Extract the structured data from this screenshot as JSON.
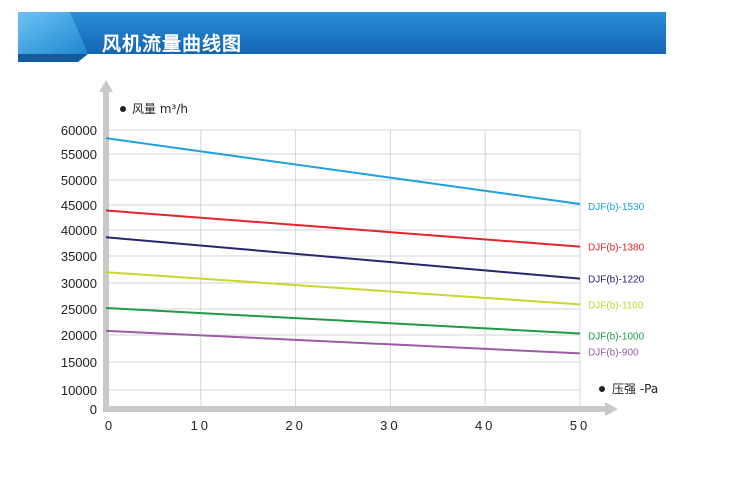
{
  "header": {
    "title": "风机流量曲线图"
  },
  "chart_data": {
    "type": "line",
    "ylabel": "风量 m³/h",
    "xlabel": "压强 -Pa",
    "x_ticks": [
      "0",
      "10",
      "20",
      "30",
      "40",
      "50"
    ],
    "y_ticks": [
      "0",
      "10000",
      "15000",
      "20000",
      "25000",
      "30000",
      "35000",
      "40000",
      "45000",
      "50000",
      "55000",
      "60000"
    ],
    "xlim": [
      0,
      50
    ],
    "ylim": [
      0,
      60000
    ],
    "x": [
      0,
      50
    ],
    "grid": true,
    "series": [
      {
        "name": "DJF(b)-1530",
        "color": "#1ea0dc",
        "values": [
          58300,
          45200
        ]
      },
      {
        "name": "DJF(b)-1380",
        "color": "#e3242b",
        "values": [
          43900,
          36800
        ]
      },
      {
        "name": "DJF(b)-1220",
        "color": "#27256f",
        "values": [
          38600,
          30800
        ]
      },
      {
        "name": "DJF(b)-1100",
        "color": "#c6d82a",
        "values": [
          32000,
          25900
        ]
      },
      {
        "name": "DJF(b)-1000",
        "color": "#1f9a45",
        "values": [
          25200,
          20300
        ]
      },
      {
        "name": "DJF(b)-900",
        "color": "#9c5aa6",
        "values": [
          20800,
          16600
        ]
      }
    ]
  }
}
